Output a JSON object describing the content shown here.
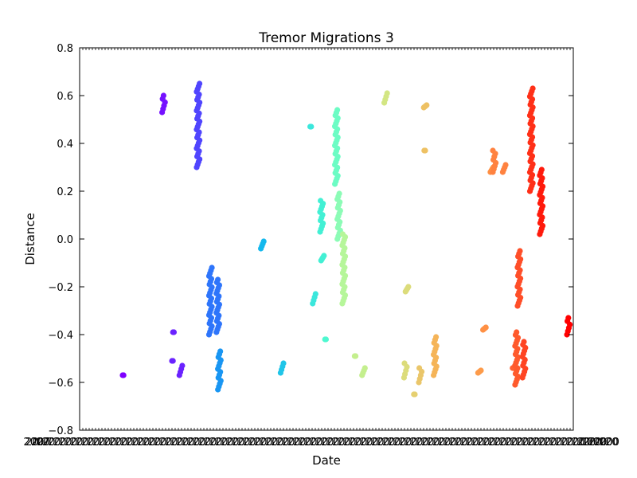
{
  "chart_data": {
    "type": "scatter",
    "title": "Tremor Migrations 3",
    "xlabel": "Date",
    "ylabel": "Distance",
    "ylim": [
      -0.8,
      0.8
    ],
    "yticks": [
      -0.8,
      -0.6,
      -0.4,
      -0.2,
      0.0,
      0.2,
      0.4,
      0.6,
      0.8
    ],
    "ytick_labels": [
      "−0.8",
      "−0.6",
      "−0.4",
      "−0.2",
      "0.0",
      "0.2",
      "0.4",
      "0.6",
      "0.8"
    ],
    "xtick_label_fragments": [
      "2007",
      ".000000"
    ],
    "grid": false,
    "colormap": "rainbow",
    "clusters": [
      {
        "x": 0.09,
        "y": [
          -0.57,
          -0.57
        ],
        "color": "#7f00ff"
      },
      {
        "x": 0.17,
        "y": [
          0.53,
          0.6
        ],
        "color": "#7511ff"
      },
      {
        "x": 0.19,
        "y": [
          -0.51,
          -0.51
        ],
        "color": "#6a22ff"
      },
      {
        "x": 0.192,
        "y": [
          -0.39,
          -0.39
        ],
        "color": "#6a22ff"
      },
      {
        "x": 0.205,
        "y": [
          -0.57,
          -0.53
        ],
        "color": "#6a22ff"
      },
      {
        "x": 0.24,
        "y": [
          0.3,
          0.65
        ],
        "color": "#5045fe"
      },
      {
        "x": 0.265,
        "y": [
          -0.4,
          -0.12
        ],
        "color": "#2e75fb"
      },
      {
        "x": 0.28,
        "y": [
          -0.39,
          -0.17
        ],
        "color": "#2e75fb"
      },
      {
        "x": 0.283,
        "y": [
          -0.63,
          -0.47
        ],
        "color": "#1996f3"
      },
      {
        "x": 0.37,
        "y": [
          -0.04,
          -0.01
        ],
        "color": "#14b8ed"
      },
      {
        "x": 0.41,
        "y": [
          -0.56,
          -0.52
        ],
        "color": "#20c5e8"
      },
      {
        "x": 0.47,
        "y": [
          0.47,
          0.47
        ],
        "color": "#3be7dc"
      },
      {
        "x": 0.475,
        "y": [
          -0.27,
          -0.23
        ],
        "color": "#3be7dc"
      },
      {
        "x": 0.49,
        "y": [
          0.03,
          0.16
        ],
        "color": "#43f0d4"
      },
      {
        "x": 0.492,
        "y": [
          -0.09,
          -0.07
        ],
        "color": "#43f0d4"
      },
      {
        "x": 0.5,
        "y": [
          -0.42,
          -0.42
        ],
        "color": "#4ef8d0"
      },
      {
        "x": 0.52,
        "y": [
          0.23,
          0.54
        ],
        "color": "#6cfcc4"
      },
      {
        "x": 0.525,
        "y": [
          0.0,
          0.19
        ],
        "color": "#8cfcb6"
      },
      {
        "x": 0.535,
        "y": [
          -0.27,
          0.02
        ],
        "color": "#b6f69a"
      },
      {
        "x": 0.56,
        "y": [
          -0.49,
          -0.49
        ],
        "color": "#c4ef8e"
      },
      {
        "x": 0.575,
        "y": [
          -0.57,
          -0.54
        ],
        "color": "#c4ef8e"
      },
      {
        "x": 0.62,
        "y": [
          0.57,
          0.61
        ],
        "color": "#d3e683"
      },
      {
        "x": 0.66,
        "y": [
          -0.58,
          -0.52
        ],
        "color": "#dcdc7b"
      },
      {
        "x": 0.663,
        "y": [
          -0.22,
          -0.2
        ],
        "color": "#dcdc7b"
      },
      {
        "x": 0.68,
        "y": [
          -0.65,
          -0.65
        ],
        "color": "#e6d071"
      },
      {
        "x": 0.69,
        "y": [
          -0.6,
          -0.54
        ],
        "color": "#eac66a"
      },
      {
        "x": 0.7,
        "y": [
          0.55,
          0.56
        ],
        "color": "#eec163"
      },
      {
        "x": 0.701,
        "y": [
          0.37,
          0.37
        ],
        "color": "#eec163"
      },
      {
        "x": 0.72,
        "y": [
          -0.57,
          -0.41
        ],
        "color": "#f5b458"
      },
      {
        "x": 0.81,
        "y": [
          -0.56,
          -0.55
        ],
        "color": "#fd9b4a"
      },
      {
        "x": 0.82,
        "y": [
          -0.38,
          -0.37
        ],
        "color": "#ff9044"
      },
      {
        "x": 0.835,
        "y": [
          0.28,
          0.3
        ],
        "color": "#ff9044"
      },
      {
        "x": 0.84,
        "y": [
          0.28,
          0.37
        ],
        "color": "#ff8240"
      },
      {
        "x": 0.86,
        "y": [
          0.28,
          0.31
        ],
        "color": "#ff8240"
      },
      {
        "x": 0.88,
        "y": [
          -0.54,
          -0.54
        ],
        "color": "#ff6030"
      },
      {
        "x": 0.885,
        "y": [
          -0.61,
          -0.39
        ],
        "color": "#ff5a2c"
      },
      {
        "x": 0.89,
        "y": [
          -0.28,
          -0.05
        ],
        "color": "#ff4e28"
      },
      {
        "x": 0.9,
        "y": [
          -0.58,
          -0.43
        ],
        "color": "#ff4422"
      },
      {
        "x": 0.915,
        "y": [
          0.2,
          0.63
        ],
        "color": "#ff3018"
      },
      {
        "x": 0.935,
        "y": [
          0.02,
          0.29
        ],
        "color": "#ff1a0c"
      },
      {
        "x": 0.99,
        "y": [
          -0.4,
          -0.33
        ],
        "color": "#ff0000"
      }
    ]
  }
}
